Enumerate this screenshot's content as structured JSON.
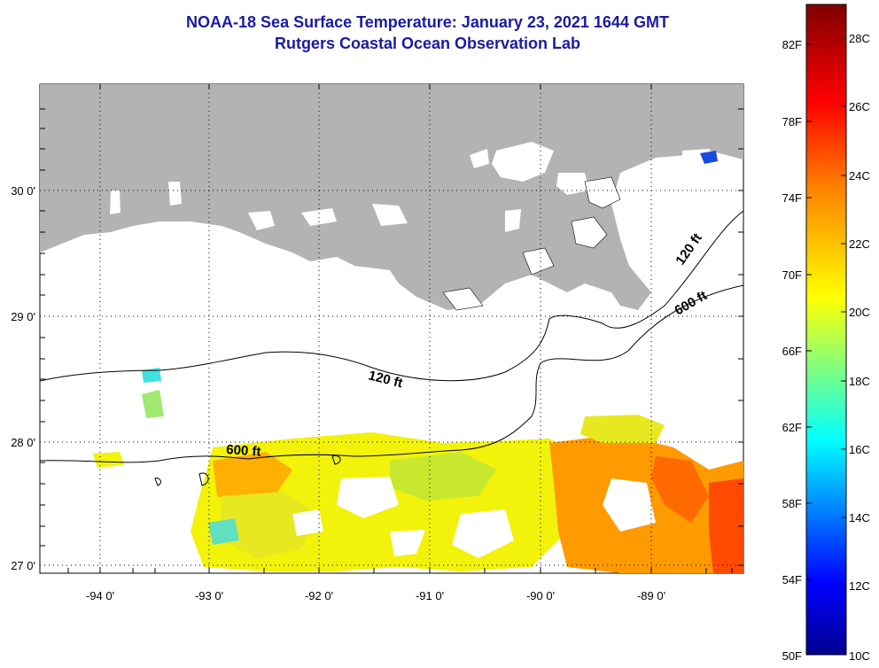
{
  "header": {
    "title": "NOAA-18 Sea Surface Temperature:  January 23, 2021 1644 GMT",
    "subtitle": "Rutgers Coastal Ocean Observation Lab"
  },
  "map": {
    "lon_labels": [
      "-94 0'",
      "-93 0'",
      "-92 0'",
      "-91 0'",
      "-90 0'",
      "-89 0'"
    ],
    "lat_labels": [
      "30 0'",
      "29 0'",
      "28 0'",
      "27 0'"
    ],
    "lon_range": [
      -94.55,
      -88.0
    ],
    "lat_range": [
      26.95,
      29.9
    ],
    "land_color": "#b3b3b3",
    "contours": [
      {
        "label": "120 ft"
      },
      {
        "label": "600 ft"
      },
      {
        "label": "120 ft"
      },
      {
        "label": "600 ft"
      }
    ]
  },
  "colorbar": {
    "fahrenheit_labels": [
      "82F",
      "78F",
      "74F",
      "70F",
      "66F",
      "62F",
      "58F",
      "54F",
      "50F"
    ],
    "celsius_labels": [
      "28C",
      "26C",
      "24C",
      "22C",
      "20C",
      "18C",
      "16C",
      "14C",
      "12C",
      "10C"
    ],
    "range_c": [
      10,
      29
    ],
    "colors": [
      "#00008f",
      "#0000ff",
      "#0080ff",
      "#00ffff",
      "#80ff80",
      "#ffff00",
      "#ff8000",
      "#ff0000",
      "#800000"
    ]
  }
}
